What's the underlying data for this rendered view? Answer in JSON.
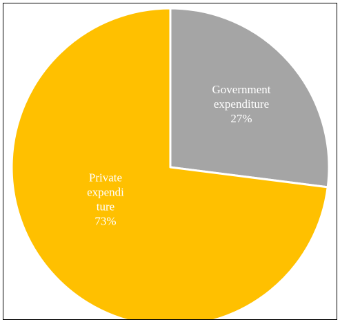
{
  "chart_data": {
    "type": "pie",
    "title": "",
    "slices": [
      {
        "label_lines": [
          "Government",
          "expenditure"
        ],
        "value": 27,
        "value_label": "27%",
        "color": "#a5a5a5"
      },
      {
        "label_lines": [
          "Private",
          "expendi",
          "ture"
        ],
        "value": 73,
        "value_label": "73%",
        "color": "#ffc000"
      }
    ],
    "start_angle_deg": 0,
    "direction": "clockwise",
    "slice_border_color": "#ffffff",
    "legend": "none",
    "data_labels": "inside"
  }
}
